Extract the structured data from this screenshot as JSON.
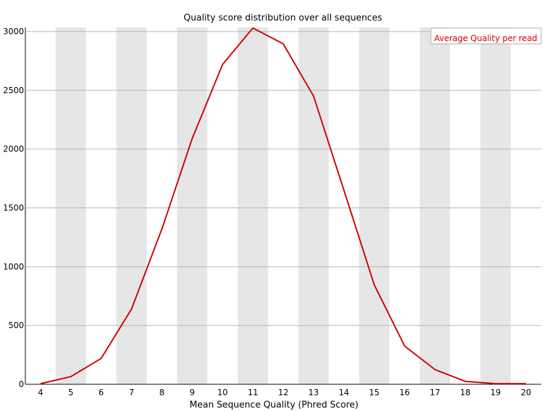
{
  "chart_data": {
    "type": "line",
    "title": "Quality score distribution over all sequences",
    "xlabel": "Mean Sequence Quality (Phred Score)",
    "ylabel": "",
    "x": [
      4,
      5,
      6,
      7,
      8,
      9,
      10,
      11,
      12,
      13,
      14,
      15,
      16,
      17,
      18,
      19,
      20
    ],
    "xlim": [
      4,
      20
    ],
    "ylim": [
      0,
      3000
    ],
    "yticks": [
      0,
      500,
      1000,
      1500,
      2000,
      2500,
      3000
    ],
    "grid": true,
    "alternating_column_shading": true,
    "legend_position": "top-right",
    "series": [
      {
        "name": "Average Quality per read",
        "color": "#cc0000",
        "values": [
          5,
          65,
          220,
          640,
          1320,
          2090,
          2720,
          3030,
          2895,
          2450,
          1650,
          845,
          325,
          125,
          25,
          5,
          5
        ]
      }
    ]
  }
}
